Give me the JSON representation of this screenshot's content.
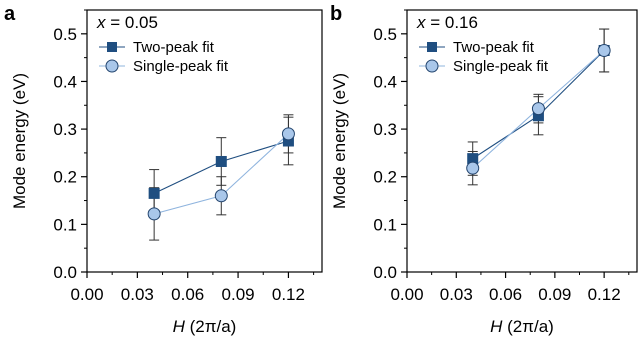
{
  "colors": {
    "two_peak_fill": "#1f4e80",
    "two_peak_line": "#1f4e80",
    "single_peak_fill": "#a9c7ea",
    "single_peak_line": "#8fb4de",
    "axis": "#000000",
    "errorbar": "#333333"
  },
  "chart_data": [
    {
      "type": "scatter",
      "panel_label": "a",
      "annotation": {
        "var": "x",
        "rest": " = 0.05"
      },
      "xlabel": {
        "var": "H",
        "rest": " (2π/a)"
      },
      "ylabel": "Mode energy (eV)",
      "xlim": [
        0,
        0.14
      ],
      "ylim": [
        0,
        0.55
      ],
      "xticks": [
        "0.00",
        "0.03",
        "0.06",
        "0.09",
        "0.12"
      ],
      "xtick_values": [
        0,
        0.03,
        0.06,
        0.09,
        0.12
      ],
      "yticks": [
        "0.0",
        "0.1",
        "0.2",
        "0.3",
        "0.4",
        "0.5"
      ],
      "ytick_values": [
        0,
        0.1,
        0.2,
        0.3,
        0.4,
        0.5
      ],
      "legend_placement": "top-left",
      "series": [
        {
          "name": "Two-peak fit",
          "marker": "square",
          "x": [
            0.04,
            0.08,
            0.12
          ],
          "y": [
            0.165,
            0.232,
            0.275
          ],
          "err": [
            0.05,
            0.05,
            0.05
          ]
        },
        {
          "name": "Single-peak fit",
          "marker": "circle",
          "x": [
            0.04,
            0.08,
            0.12
          ],
          "y": [
            0.122,
            0.16,
            0.29
          ],
          "err": [
            0.055,
            0.04,
            0.04
          ]
        }
      ]
    },
    {
      "type": "scatter",
      "panel_label": "b",
      "annotation": {
        "var": "x",
        "rest": " = 0.16"
      },
      "xlabel": {
        "var": "H",
        "rest": " (2π/a)"
      },
      "ylabel": "Mode energy (eV)",
      "xlim": [
        0,
        0.14
      ],
      "ylim": [
        0,
        0.55
      ],
      "xticks": [
        "0.00",
        "0.03",
        "0.06",
        "0.09",
        "0.12"
      ],
      "xtick_values": [
        0,
        0.03,
        0.06,
        0.09,
        0.12
      ],
      "yticks": [
        "0.0",
        "0.1",
        "0.2",
        "0.3",
        "0.4",
        "0.5"
      ],
      "ytick_values": [
        0,
        0.1,
        0.2,
        0.3,
        0.4,
        0.5
      ],
      "legend_placement": "top-left",
      "series": [
        {
          "name": "Two-peak fit",
          "marker": "square",
          "x": [
            0.04,
            0.08,
            0.12
          ],
          "y": [
            0.238,
            0.328,
            0.465
          ],
          "err": [
            0.035,
            0.04,
            0.045
          ]
        },
        {
          "name": "Single-peak fit",
          "marker": "circle",
          "x": [
            0.04,
            0.08,
            0.12
          ],
          "y": [
            0.218,
            0.343,
            0.465
          ],
          "err": [
            0.035,
            0.03,
            0.045
          ]
        }
      ]
    }
  ]
}
